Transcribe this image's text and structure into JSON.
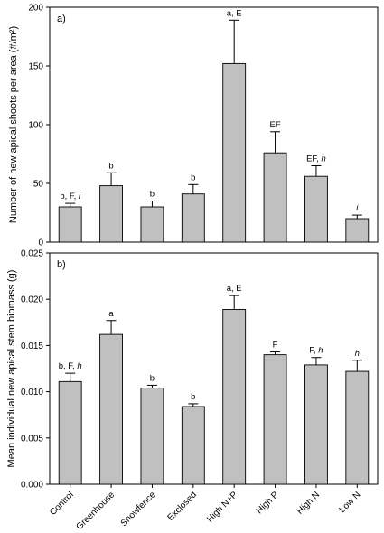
{
  "chart_data": [
    {
      "type": "bar",
      "panel_label": "a)",
      "ylabel": "Number of new apical shoots per area (#/m²)",
      "ylim": [
        0,
        200
      ],
      "yticks": [
        0,
        50,
        100,
        150,
        200
      ],
      "ytick_labels": [
        "0",
        "50",
        "100",
        "150",
        "200"
      ],
      "categories": [
        "Control",
        "Greenhouse",
        "Snowfence",
        "Exclosed",
        "High N+P",
        "High P",
        "High N",
        "Low N"
      ],
      "values": [
        30,
        48,
        30,
        41,
        152,
        76,
        56,
        20
      ],
      "errors": [
        3,
        11,
        5,
        8,
        37,
        18,
        9,
        3
      ],
      "annotations": [
        [
          {
            "t": "b, F, "
          },
          {
            "t": "i",
            "i": true
          }
        ],
        [
          {
            "t": "b"
          }
        ],
        [
          {
            "t": "b"
          }
        ],
        [
          {
            "t": "b"
          }
        ],
        [
          {
            "t": "a, E"
          }
        ],
        [
          {
            "t": "EF"
          }
        ],
        [
          {
            "t": "EF, "
          },
          {
            "t": "h",
            "i": true
          }
        ],
        [
          {
            "t": "i",
            "i": true
          }
        ]
      ],
      "bar_color": "#c0c0c0",
      "grid": false
    },
    {
      "type": "bar",
      "panel_label": "b)",
      "ylabel": "Mean individual new apical stem biomass (g)",
      "ylim": [
        0,
        0.025
      ],
      "yticks": [
        0,
        0.005,
        0.01,
        0.015,
        0.02,
        0.025
      ],
      "ytick_labels": [
        "0.000",
        "0.005",
        "0.010",
        "0.015",
        "0.020",
        "0.025"
      ],
      "categories": [
        "Control",
        "Greenhouse",
        "Snowfence",
        "Exclosed",
        "High N+P",
        "High P",
        "High N",
        "Low N"
      ],
      "values": [
        0.0111,
        0.0162,
        0.0104,
        0.0084,
        0.0189,
        0.014,
        0.0129,
        0.0122
      ],
      "errors": [
        0.0009,
        0.0015,
        0.0003,
        0.0003,
        0.0015,
        0.0003,
        0.0008,
        0.0012
      ],
      "annotations": [
        [
          {
            "t": "b, F, "
          },
          {
            "t": "h",
            "i": true
          }
        ],
        [
          {
            "t": "a"
          }
        ],
        [
          {
            "t": "b"
          }
        ],
        [
          {
            "t": "b"
          }
        ],
        [
          {
            "t": "a, E"
          }
        ],
        [
          {
            "t": "F"
          }
        ],
        [
          {
            "t": "F, "
          },
          {
            "t": "h",
            "i": true
          }
        ],
        [
          {
            "t": "h",
            "i": true
          }
        ]
      ],
      "bar_color": "#c0c0c0",
      "grid": false
    }
  ]
}
